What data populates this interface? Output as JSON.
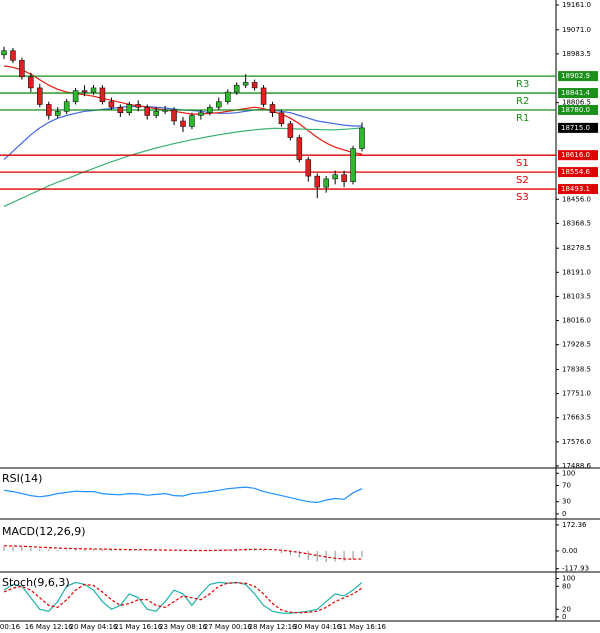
{
  "chart_data": [
    {
      "type": "candlestick",
      "categories": [
        "00:16",
        null,
        null,
        null,
        null,
        "16 May 12:16",
        null,
        null,
        null,
        null,
        "20 May 04:16",
        null,
        null,
        null,
        null,
        "21 May 16:16",
        null,
        null,
        null,
        null,
        "23 May 08:16",
        null,
        null,
        null,
        null,
        "27 May 00:16",
        null,
        null,
        null,
        null,
        "28 May 12:16",
        null,
        null,
        null,
        null,
        "30 May 04:16",
        null,
        null,
        null,
        null,
        "31 May 16:16"
      ],
      "open": [
        18980,
        18995,
        18960,
        18900,
        18860,
        18800,
        18760,
        18775,
        18810,
        18850,
        18845,
        18860,
        18810,
        18790,
        18770,
        18800,
        18790,
        18760,
        18775,
        18780,
        18740,
        18720,
        18760,
        18770,
        18790,
        18810,
        18845,
        18870,
        18880,
        18860,
        18800,
        18770,
        18730,
        18680,
        18600,
        18540,
        18500,
        18530,
        18545,
        18520,
        18640
      ],
      "high": [
        19010,
        19005,
        18970,
        18915,
        18875,
        18810,
        18790,
        18820,
        18860,
        18870,
        18870,
        18870,
        18825,
        18800,
        18810,
        18815,
        18800,
        18790,
        18795,
        18790,
        18755,
        18770,
        18780,
        18800,
        18825,
        18855,
        18880,
        18910,
        18890,
        18870,
        18810,
        18780,
        18740,
        18690,
        18610,
        18550,
        18540,
        18560,
        18560,
        18650,
        18735
      ],
      "low": [
        18965,
        18950,
        18890,
        18845,
        18790,
        18745,
        18750,
        18765,
        18800,
        18830,
        18835,
        18800,
        18780,
        18755,
        18760,
        18775,
        18745,
        18750,
        18765,
        18725,
        18700,
        18710,
        18745,
        18760,
        18780,
        18800,
        18835,
        18860,
        18850,
        18790,
        18755,
        18720,
        18670,
        18590,
        18520,
        18460,
        18480,
        18510,
        18500,
        18510,
        18630
      ],
      "close": [
        18995,
        18960,
        18900,
        18860,
        18800,
        18760,
        18775,
        18810,
        18850,
        18845,
        18860,
        18810,
        18790,
        18770,
        18800,
        18790,
        18760,
        18775,
        18780,
        18740,
        18720,
        18760,
        18770,
        18790,
        18810,
        18845,
        18870,
        18880,
        18860,
        18800,
        18770,
        18730,
        18680,
        18600,
        18540,
        18500,
        18530,
        18545,
        18520,
        18640,
        18715
      ],
      "up_color": "#2eb82e",
      "down_color": "#e02020",
      "series": [
        {
          "color": "#4169e1",
          "values": [
            18600,
            18630,
            18660,
            18690,
            18715,
            18735,
            18750,
            18760,
            18768,
            18775,
            18778,
            18782,
            18785,
            18790,
            18792,
            18793,
            18792,
            18790,
            18787,
            18783,
            18780,
            18778,
            18775,
            18770,
            18768,
            18768,
            18770,
            18775,
            18780,
            18782,
            18780,
            18775,
            18770,
            18760,
            18750,
            18740,
            18735,
            18730,
            18725,
            18722,
            18722
          ]
        },
        {
          "color": "#e8190e",
          "values": [
            18940,
            18935,
            18925,
            18910,
            18890,
            18870,
            18855,
            18845,
            18840,
            18835,
            18830,
            18822,
            18815,
            18808,
            18800,
            18795,
            18790,
            18785,
            18780,
            18775,
            18770,
            18765,
            18765,
            18768,
            18770,
            18775,
            18780,
            18785,
            18790,
            18785,
            18775,
            18765,
            18750,
            18730,
            18705,
            18680,
            18660,
            18645,
            18635,
            18625,
            18620
          ]
        },
        {
          "color": "#3cb371",
          "values": [
            18430,
            18445,
            18460,
            18475,
            18490,
            18505,
            18518,
            18530,
            18543,
            18556,
            18568,
            18580,
            18592,
            18603,
            18614,
            18624,
            18633,
            18642,
            18650,
            18658,
            18665,
            18672,
            18678,
            18684,
            18690,
            18695,
            18700,
            18704,
            18708,
            18711,
            18713,
            18713,
            18712,
            18711,
            18710,
            18709,
            18708,
            18708,
            18710,
            18712,
            18715
          ]
        }
      ],
      "levels": [
        {
          "name": "R3",
          "value": 18902.9,
          "value_label": "18902.9",
          "color": "#1a8f1a"
        },
        {
          "name": "R2",
          "value": 18841.4,
          "value_label": "18841.4",
          "color": "#1a8f1a"
        },
        {
          "name": "R1",
          "value": 18780,
          "value_label": "18780.0",
          "color": "#1a8f1a"
        },
        {
          "name": "S1",
          "value": 18616,
          "value_label": "18616.0",
          "color": "#e00000"
        },
        {
          "name": "S2",
          "value": 18554.6,
          "value_label": "18554.6",
          "color": "#e00000"
        },
        {
          "name": "S3",
          "value": 18493.1,
          "value_label": "18493.1",
          "color": "#e00000"
        }
      ],
      "last_price": {
        "value": 18715,
        "label": "18715.0"
      },
      "ylim": [
        17481,
        19179
      ],
      "yticks": [
        {
          "value": 19161,
          "label": "19161.0"
        },
        {
          "value": 19071,
          "label": "19071.0"
        },
        {
          "value": 18983.5,
          "label": "18983.5"
        },
        {
          "value": 18806.5,
          "label": "18806.5"
        },
        {
          "value": 18456,
          "label": "18456.0"
        },
        {
          "value": 18368.5,
          "label": "18368.5"
        },
        {
          "value": 18278.5,
          "label": "18278.5"
        },
        {
          "value": 18191,
          "label": "18191.0"
        },
        {
          "value": 18103.5,
          "label": "18103.5"
        },
        {
          "value": 18016,
          "label": "18016.0"
        },
        {
          "value": 17928.5,
          "label": "17928.5"
        },
        {
          "value": 17838.5,
          "label": "17838.5"
        },
        {
          "value": 17751,
          "label": "17751.0"
        },
        {
          "value": 17663.5,
          "label": "17663.5"
        },
        {
          "value": 17576,
          "label": "17576.0"
        },
        17488.6
      ]
    },
    {
      "type": "line",
      "title": "RSI(14)",
      "series": [
        {
          "color": "#1e90ff",
          "values": [
            58,
            55,
            50,
            45,
            42,
            45,
            50,
            53,
            56,
            55,
            55,
            50,
            48,
            47,
            50,
            49,
            46,
            48,
            50,
            45,
            44,
            50,
            52,
            55,
            58,
            62,
            64,
            66,
            63,
            55,
            50,
            45,
            40,
            35,
            30,
            28,
            34,
            38,
            36,
            52,
            62
          ]
        }
      ],
      "ylim": [
        -10,
        108
      ],
      "yticks": [
        100,
        70,
        30,
        0
      ]
    },
    {
      "type": "macd",
      "title": "MACD(12,26,9)",
      "histogram": [
        30,
        28,
        25,
        20,
        15,
        10,
        8,
        8,
        10,
        12,
        12,
        10,
        8,
        6,
        6,
        6,
        5,
        4,
        4,
        2,
        0,
        0,
        2,
        4,
        8,
        12,
        15,
        18,
        16,
        10,
        0,
        -15,
        -30,
        -45,
        -60,
        -70,
        -75,
        -70,
        -65,
        -55,
        -40
      ],
      "signal": [
        35,
        33,
        31,
        28,
        25,
        22,
        19,
        17,
        15,
        14,
        13,
        12,
        11,
        10,
        9,
        8,
        8,
        7,
        6,
        5,
        4,
        3,
        3,
        3,
        4,
        5,
        7,
        9,
        11,
        11,
        9,
        5,
        -2,
        -10,
        -20,
        -30,
        -40,
        -48,
        -53,
        -55,
        -53
      ],
      "histogram_color": "#a0a0a0",
      "signal_color": "#e00000",
      "ylim": [
        -133,
        205
      ],
      "yticks": [
        172.36,
        {
          "value": 0,
          "label": "0.00"
        },
        -117.93
      ]
    },
    {
      "type": "line",
      "title": "Stoch(9,6,3)",
      "series": [
        {
          "color": "#20b2aa",
          "values": [
            70,
            85,
            80,
            50,
            20,
            15,
            40,
            80,
            90,
            85,
            70,
            40,
            20,
            30,
            60,
            50,
            20,
            15,
            40,
            70,
            60,
            30,
            60,
            85,
            90,
            88,
            90,
            85,
            60,
            30,
            15,
            10,
            10,
            12,
            15,
            20,
            40,
            60,
            55,
            70,
            90
          ]
        },
        {
          "color": "#e00000",
          "dashed": true,
          "values": [
            65,
            75,
            80,
            70,
            50,
            30,
            25,
            45,
            70,
            85,
            82,
            65,
            45,
            30,
            35,
            45,
            45,
            30,
            25,
            40,
            55,
            50,
            45,
            60,
            80,
            88,
            89,
            88,
            80,
            60,
            35,
            18,
            12,
            11,
            12,
            15,
            25,
            40,
            50,
            60,
            75
          ]
        }
      ],
      "ylim": [
        -8,
        112
      ],
      "yticks": [
        100,
        80,
        20,
        0
      ]
    }
  ]
}
